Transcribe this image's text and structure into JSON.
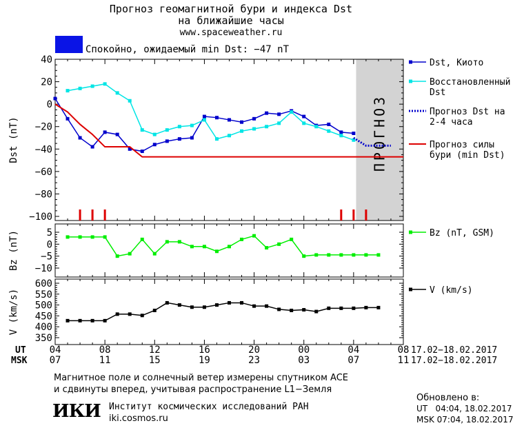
{
  "header": {
    "title_line1": "Прогноз геомагнитной бури и индекса Dst",
    "title_line2": "на ближайшие часы",
    "website": "www.spaceweather.ru",
    "status_color": "#0a14e6",
    "status_text": "Спокойно, ожидаемый min Dst: −47 nT"
  },
  "chart_data": [
    {
      "type": "line",
      "name": "dst-panel",
      "ylabel": "Dst (nT)",
      "ylim": [
        -100,
        40
      ],
      "yticks": [
        40,
        20,
        0,
        -20,
        -40,
        -60,
        -80,
        -100
      ],
      "xlim": [
        0,
        28
      ],
      "forecast_region": {
        "x_start": 24.2,
        "x_end": 28,
        "label": "ПРОГНОЗ",
        "color": "#d3d3d3"
      },
      "series": [
        {
          "name": "Dst, Киото",
          "color": "#0000cc",
          "style": "line-square",
          "x": [
            0,
            1,
            2,
            3,
            4,
            5,
            6,
            7,
            8,
            9,
            10,
            11,
            12,
            13,
            14,
            15,
            16,
            17,
            18,
            19,
            20,
            21,
            22,
            23,
            24
          ],
          "y": [
            5,
            -13,
            -30,
            -38,
            -25,
            -27,
            -40,
            -42,
            -36,
            -33,
            -31,
            -30,
            -11,
            -12,
            -14,
            -16,
            -13,
            -8,
            -9,
            -6,
            -11,
            -19,
            -18,
            -25,
            -26
          ]
        },
        {
          "name": "Восстановленный Dst",
          "color": "#00e5e5",
          "style": "line-square",
          "x": [
            1,
            2,
            3,
            4,
            5,
            6,
            7,
            8,
            9,
            10,
            11,
            12,
            13,
            14,
            15,
            16,
            17,
            18,
            19,
            20,
            21,
            22,
            23,
            24
          ],
          "y": [
            12,
            14,
            16,
            18,
            10,
            3,
            -23,
            -27,
            -23,
            -20,
            -19,
            -14,
            -31,
            -28,
            -24,
            -22,
            -20,
            -17,
            -7,
            -17,
            -20,
            -24,
            -28,
            -32
          ]
        },
        {
          "name": "Прогноз Dst на 2-4 часа",
          "color": "#0000cc",
          "style": "dotted",
          "x": [
            24,
            25,
            26,
            27
          ],
          "y": [
            -30,
            -37,
            -37,
            -37
          ]
        },
        {
          "name": "Прогноз силы бури (min Dst)",
          "color": "#dd0000",
          "style": "line",
          "x": [
            0,
            1,
            2,
            3,
            4,
            5,
            6,
            7,
            8,
            9,
            10,
            11,
            12,
            13,
            14,
            15,
            16,
            17,
            18,
            19,
            20,
            21,
            22,
            23,
            24,
            25,
            26,
            27,
            28
          ],
          "y": [
            0,
            -7,
            -18,
            -27,
            -38,
            -38,
            -38,
            -47,
            -47,
            -47,
            -47,
            -47,
            -47,
            -47,
            -47,
            -47,
            -47,
            -47,
            -47,
            -47,
            -47,
            -47,
            -47,
            -47,
            -47,
            -47,
            -47,
            -47,
            -47
          ]
        }
      ],
      "markers": {
        "color": "#dd0000",
        "x": [
          2,
          3,
          4,
          23,
          24,
          25
        ]
      }
    },
    {
      "type": "line",
      "name": "bz-panel",
      "ylabel": "Bz (nT)",
      "ylim": [
        -12,
        8
      ],
      "yticks": [
        5,
        0,
        -5,
        -10
      ],
      "series": [
        {
          "name": "Bz (nT, GSM)",
          "color": "#00ee00",
          "style": "line-square",
          "x": [
            1,
            2,
            3,
            4,
            5,
            6,
            7,
            8,
            9,
            10,
            11,
            12,
            13,
            14,
            15,
            16,
            17,
            18,
            19,
            20,
            21,
            22,
            23,
            24,
            25,
            26
          ],
          "y": [
            3,
            3,
            3,
            3,
            -5,
            -4,
            2,
            -4,
            1,
            1,
            -1,
            -1,
            -3,
            -1,
            2,
            3.5,
            -1.5,
            0,
            2,
            -5,
            -4.5,
            -4.5,
            -4.5,
            -4.5,
            -4.5,
            -4.5
          ]
        }
      ]
    },
    {
      "type": "line",
      "name": "v-panel",
      "ylabel": "V (km/s)",
      "ylim": [
        330,
        620
      ],
      "yticks": [
        600,
        550,
        500,
        450,
        400,
        350
      ],
      "series": [
        {
          "name": "V (km/s)",
          "color": "#000000",
          "style": "line-square",
          "x": [
            1,
            2,
            3,
            4,
            5,
            6,
            7,
            8,
            9,
            10,
            11,
            12,
            13,
            14,
            15,
            16,
            17,
            18,
            19,
            20,
            21,
            22,
            23,
            24,
            25,
            26
          ],
          "y": [
            428,
            428,
            428,
            428,
            458,
            458,
            452,
            475,
            510,
            500,
            490,
            490,
            500,
            510,
            510,
            495,
            495,
            480,
            475,
            478,
            470,
            485,
            485,
            485,
            488,
            488
          ]
        }
      ]
    }
  ],
  "x_axis": {
    "ut_label": "UT",
    "msk_label": "MSK",
    "ut_ticks": [
      "04",
      "08",
      "12",
      "16",
      "20",
      "00",
      "04",
      "08"
    ],
    "msk_ticks": [
      "07",
      "11",
      "15",
      "19",
      "23",
      "03",
      "07",
      "11"
    ],
    "ut_range": "17.02−18.02.2017",
    "msk_range": "17.02−18.02.2017"
  },
  "footer": {
    "line1": "Магнитное поле и солнечный ветер измерены спутником ACE",
    "line2": "и сдвинуты вперед, учитывая распространение L1−Земля",
    "logo_text": "ИКИ",
    "institute": "Институт космических исследований РАН",
    "institute_url": "iki.cosmos.ru",
    "updated_label": "Обновлено в:",
    "updated_ut": "UT   04:04, 18.02.2017",
    "updated_msk": "MSK 07:04, 18.02.2017"
  }
}
